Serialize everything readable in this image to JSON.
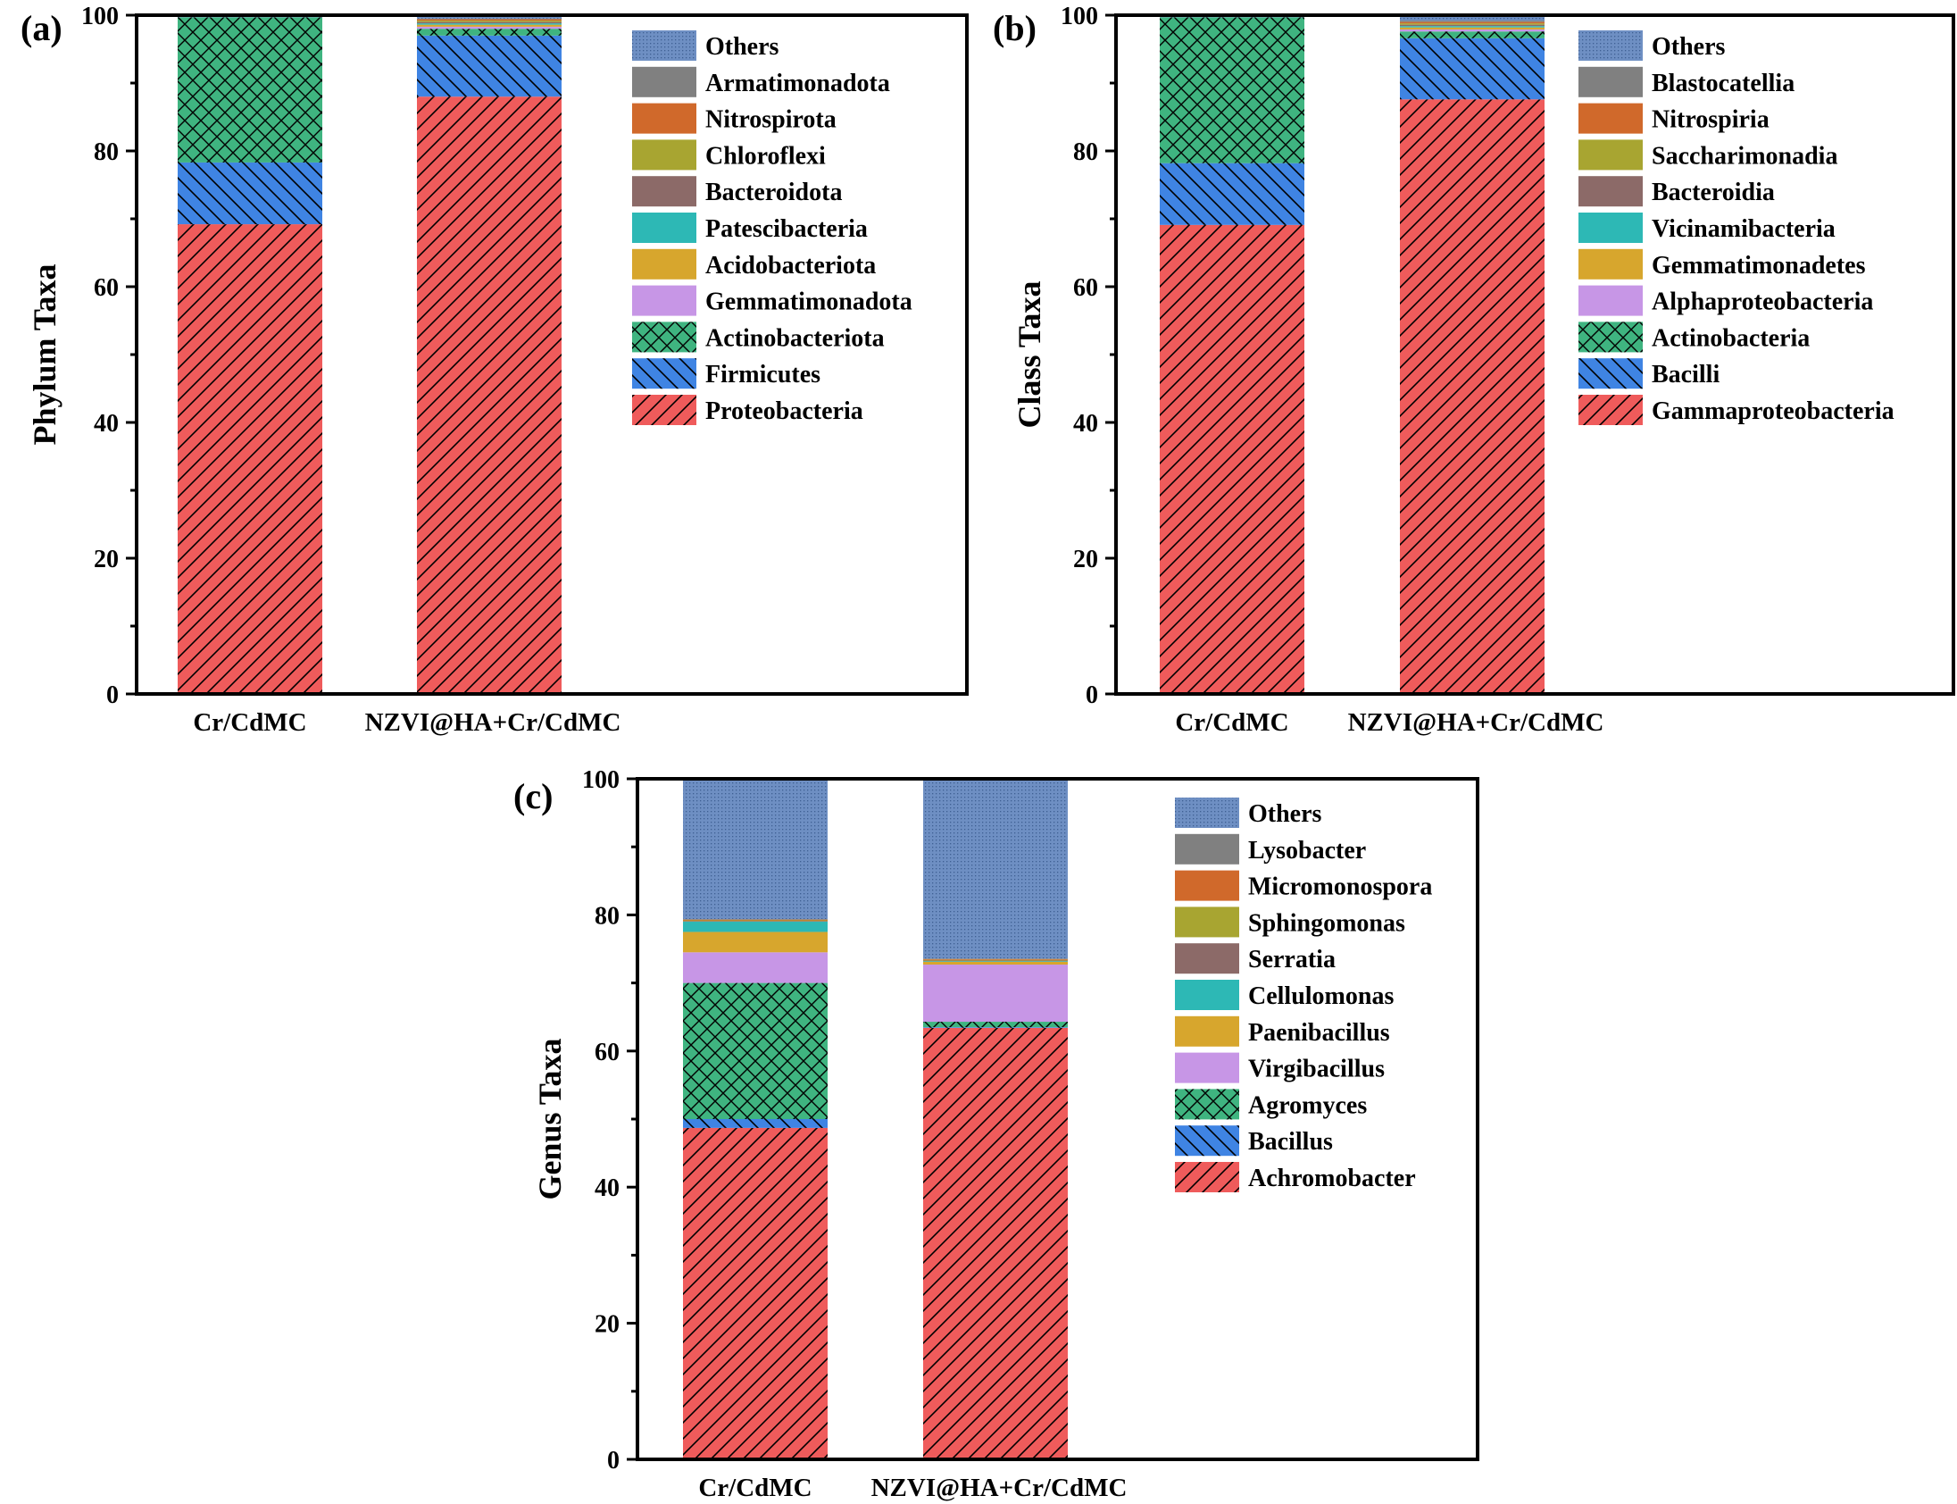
{
  "colors": {
    "Others": "#6e8fc3",
    "c2": "#808080",
    "c3": "#d0692b",
    "c4": "#a8a531",
    "c5": "#8c6a68",
    "c6": "#2db8b5",
    "c7": "#d7a62d",
    "c8": "#c796e6",
    "c9": "#3fb480",
    "c10": "#3f84e3",
    "c11": "#ef5b5b"
  },
  "chart_data": [
    {
      "type": "bar",
      "stacked": true,
      "panel": "(a)",
      "ylabel": "Phylum Taxa",
      "ylim": [
        0,
        100
      ],
      "yticks": [
        "0",
        "20",
        "40",
        "60",
        "80",
        "100"
      ],
      "categories": [
        "Cr/CdMC",
        "NZVI@HA+Cr/CdMC"
      ],
      "series": [
        {
          "name": "Proteobacteria",
          "color_key": "c11",
          "pattern": "diag",
          "values": [
            69.2,
            88.0
          ]
        },
        {
          "name": "Firmicutes",
          "color_key": "c10",
          "pattern": "back",
          "values": [
            9.1,
            9.0
          ]
        },
        {
          "name": "Actinobacteriota",
          "color_key": "c9",
          "pattern": "cross",
          "values": [
            21.4,
            1.0
          ]
        },
        {
          "name": "Gemmatimonadota",
          "color_key": "c8",
          "pattern": "none",
          "values": [
            0,
            0.3
          ]
        },
        {
          "name": "Acidobacteriota",
          "color_key": "c7",
          "pattern": "none",
          "values": [
            0,
            0.3
          ]
        },
        {
          "name": "Patescibacteria",
          "color_key": "c6",
          "pattern": "none",
          "values": [
            0,
            0.2
          ]
        },
        {
          "name": "Bacteroidota",
          "color_key": "c5",
          "pattern": "none",
          "values": [
            0,
            0.2
          ]
        },
        {
          "name": "Chloroflexi",
          "color_key": "c4",
          "pattern": "none",
          "values": [
            0,
            0.2
          ]
        },
        {
          "name": "Nitrospirota",
          "color_key": "c3",
          "pattern": "none",
          "values": [
            0,
            0.2
          ]
        },
        {
          "name": "Armatimonadota",
          "color_key": "c2",
          "pattern": "none",
          "values": [
            0,
            0.1
          ]
        },
        {
          "name": "Others",
          "color_key": "Others",
          "pattern": "dots",
          "values": [
            0.3,
            0.5
          ]
        }
      ]
    },
    {
      "type": "bar",
      "stacked": true,
      "panel": "(b)",
      "ylabel": "Class Taxa",
      "ylim": [
        0,
        100
      ],
      "yticks": [
        "0",
        "20",
        "40",
        "60",
        "80",
        "100"
      ],
      "categories": [
        "Cr/CdMC",
        "NZVI@HA+Cr/CdMC"
      ],
      "series": [
        {
          "name": "Gammaproteobacteria",
          "color_key": "c11",
          "pattern": "diag",
          "values": [
            69.1,
            87.6
          ]
        },
        {
          "name": "Bacilli",
          "color_key": "c10",
          "pattern": "back",
          "values": [
            9.1,
            9.0
          ]
        },
        {
          "name": "Actinobacteria",
          "color_key": "c9",
          "pattern": "cross",
          "values": [
            21.5,
            1.0
          ]
        },
        {
          "name": "Alphaproteobacteria",
          "color_key": "c8",
          "pattern": "none",
          "values": [
            0,
            0.3
          ]
        },
        {
          "name": "Gemmatimonadetes",
          "color_key": "c7",
          "pattern": "none",
          "values": [
            0,
            0.3
          ]
        },
        {
          "name": "Vicinamibacteria",
          "color_key": "c6",
          "pattern": "none",
          "values": [
            0,
            0.2
          ]
        },
        {
          "name": "Bacteroidia",
          "color_key": "c5",
          "pattern": "none",
          "values": [
            0,
            0.2
          ]
        },
        {
          "name": "Saccharimonadia",
          "color_key": "c4",
          "pattern": "none",
          "values": [
            0,
            0.2
          ]
        },
        {
          "name": "Nitrospiria",
          "color_key": "c3",
          "pattern": "none",
          "values": [
            0,
            0.2
          ]
        },
        {
          "name": "Blastocatellia",
          "color_key": "c2",
          "pattern": "none",
          "values": [
            0,
            0.2
          ]
        },
        {
          "name": "Others",
          "color_key": "Others",
          "pattern": "dots",
          "values": [
            0.3,
            0.8
          ]
        }
      ]
    },
    {
      "type": "bar",
      "stacked": true,
      "panel": "(c)",
      "ylabel": "Genus Taxa",
      "ylim": [
        0,
        100
      ],
      "yticks": [
        "0",
        "20",
        "40",
        "60",
        "80",
        "100"
      ],
      "categories": [
        "Cr/CdMC",
        "NZVI@HA+Cr/CdMC"
      ],
      "series": [
        {
          "name": "Achromobacter",
          "color_key": "c11",
          "pattern": "diag",
          "values": [
            48.7,
            63.4
          ]
        },
        {
          "name": "Bacillus",
          "color_key": "c10",
          "pattern": "back",
          "values": [
            1.3,
            0.1
          ]
        },
        {
          "name": "Agromyces",
          "color_key": "c9",
          "pattern": "cross",
          "values": [
            20.0,
            0.8
          ]
        },
        {
          "name": "Virgibacillus",
          "color_key": "c8",
          "pattern": "none",
          "values": [
            4.5,
            8.4
          ]
        },
        {
          "name": "Paenibacillus",
          "color_key": "c7",
          "pattern": "none",
          "values": [
            3.0,
            0.4
          ]
        },
        {
          "name": "Cellulomonas",
          "color_key": "c6",
          "pattern": "none",
          "values": [
            1.5,
            0.1
          ]
        },
        {
          "name": "Serratia",
          "color_key": "c5",
          "pattern": "none",
          "values": [
            0.1,
            0.1
          ]
        },
        {
          "name": "Sphingomonas",
          "color_key": "c4",
          "pattern": "none",
          "values": [
            0.1,
            0.1
          ]
        },
        {
          "name": "Micromonospora",
          "color_key": "c3",
          "pattern": "none",
          "values": [
            0.1,
            0.1
          ]
        },
        {
          "name": "Lysobacter",
          "color_key": "c2",
          "pattern": "none",
          "values": [
            0.1,
            0.1
          ]
        },
        {
          "name": "Others",
          "color_key": "Others",
          "pattern": "dots",
          "values": [
            20.6,
            26.4
          ]
        }
      ]
    }
  ]
}
